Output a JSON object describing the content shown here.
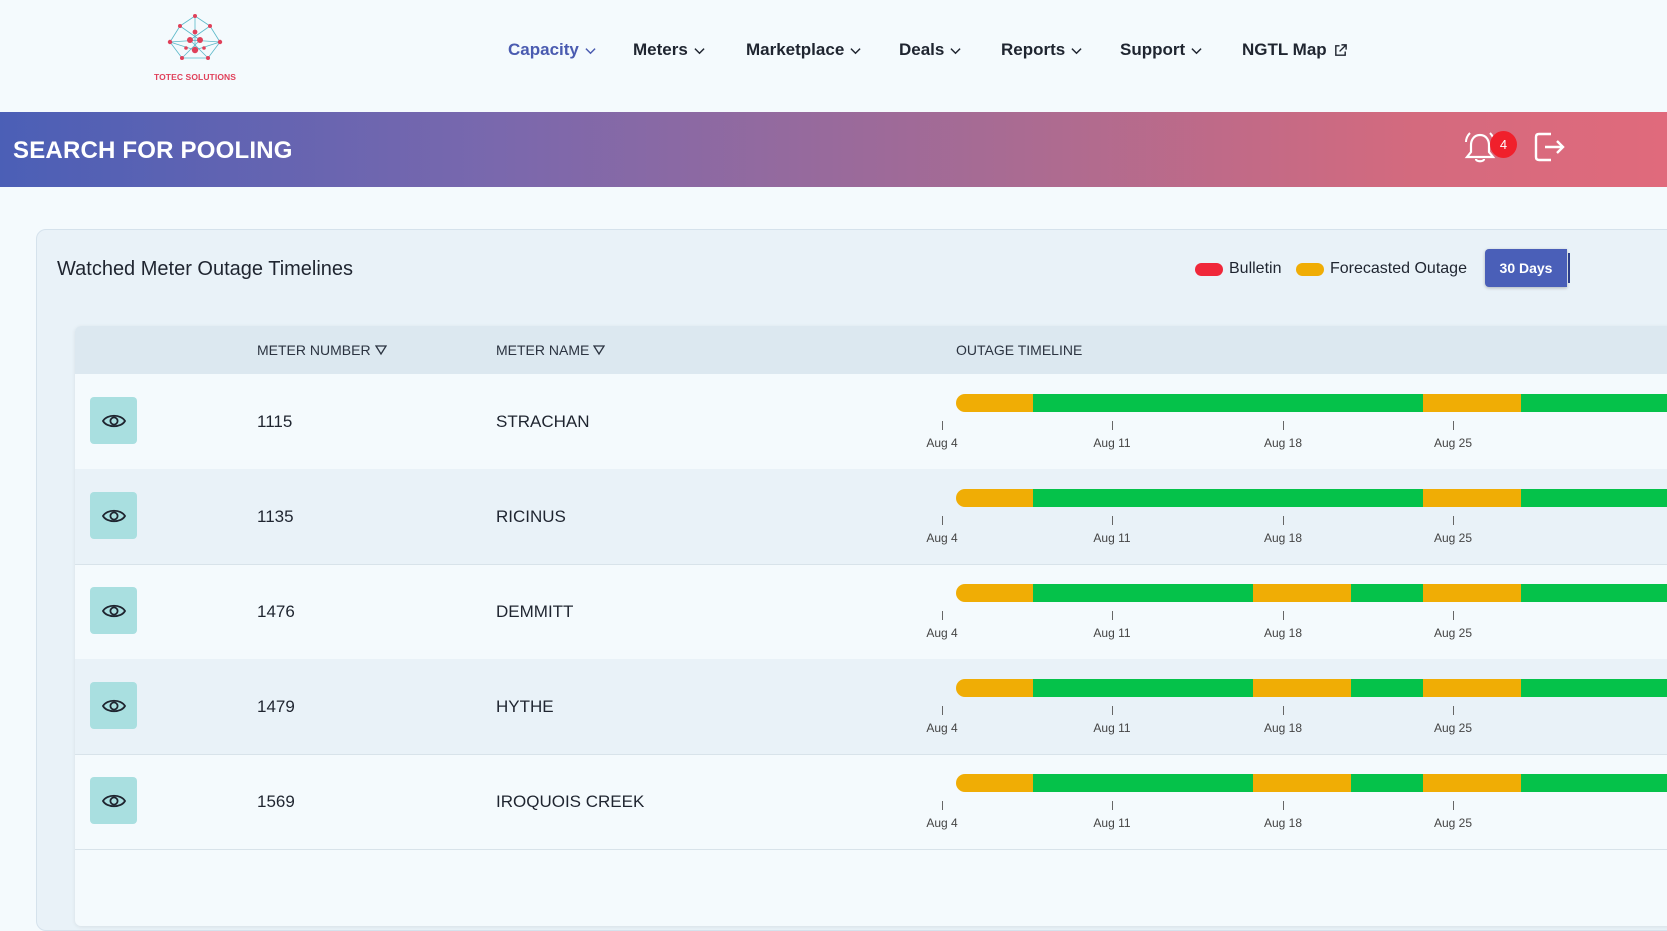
{
  "brand": {
    "name": "TOTEC SOLUTIONS"
  },
  "nav": {
    "items": [
      {
        "label": "Capacity",
        "active": true,
        "icon": "chevron-down-icon"
      },
      {
        "label": "Meters",
        "icon": "chevron-down-icon"
      },
      {
        "label": "Marketplace",
        "icon": "chevron-down-icon"
      },
      {
        "label": "Deals",
        "icon": "chevron-down-icon"
      },
      {
        "label": "Reports",
        "icon": "chevron-down-icon"
      },
      {
        "label": "Support",
        "icon": "chevron-down-icon"
      },
      {
        "label": "NGTL Map",
        "icon": "external-link-icon"
      }
    ]
  },
  "banner": {
    "title": "SEARCH FOR POOLING",
    "notification_count": "4",
    "icons": [
      "bell-icon",
      "logout-icon"
    ]
  },
  "card": {
    "title": "Watched Meter Outage Timelines",
    "legend": [
      {
        "label": "Bulletin",
        "color": "#f0283a"
      },
      {
        "label": "Forecasted Outage",
        "color": "#f0ad05"
      }
    ],
    "range_button": "30 Days"
  },
  "table": {
    "columns": [
      "METER NUMBER",
      "METER NAME",
      "OUTAGE TIMELINE"
    ],
    "tick_labels": [
      "Aug 4",
      "Aug 11",
      "Aug 18",
      "Aug 25"
    ],
    "rows": [
      {
        "number": "1115",
        "name": "STRACHAN"
      },
      {
        "number": "1135",
        "name": "RICINUS"
      },
      {
        "number": "1476",
        "name": "DEMMITT"
      },
      {
        "number": "1479",
        "name": "HYTHE"
      },
      {
        "number": "1569",
        "name": "IROQUOIS CREEK"
      }
    ]
  },
  "colors": {
    "ok": "#05c24a",
    "forecast": "#f0ad05",
    "bulletin": "#f0283a"
  }
}
